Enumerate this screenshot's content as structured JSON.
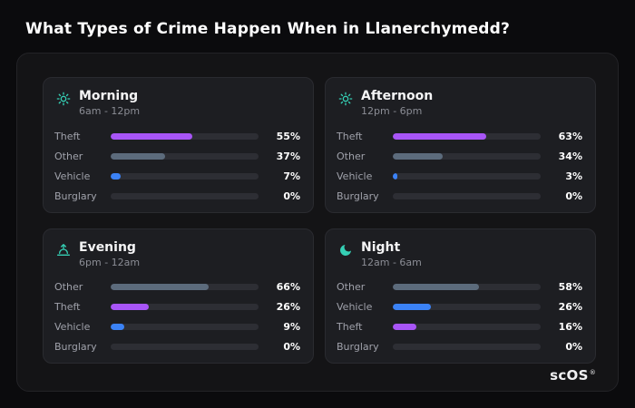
{
  "header": {
    "title": "What Types of Crime Happen When in Llanerchymedd?"
  },
  "footer": {
    "brand": "scOS",
    "registered": "®"
  },
  "colors": {
    "Theft": "#a855f7",
    "Other": "#5c6b7c",
    "Vehicle": "#3b82f6",
    "Burglary": "transparent",
    "icon_accent": "#35d0b5",
    "track": "#2d2e34",
    "panel_bg": "#141416",
    "card_bg": "#1d1e22",
    "page_bg": "#0b0b0d"
  },
  "chart_data": [
    {
      "type": "bar",
      "period": "Morning",
      "time_range": "6am - 12pm",
      "icon": "sun-icon",
      "categories": [
        "Theft",
        "Other",
        "Vehicle",
        "Burglary"
      ],
      "values": [
        55,
        37,
        7,
        0
      ],
      "value_labels": [
        "55%",
        "37%",
        "7%",
        "0%"
      ],
      "xlim": [
        0,
        100
      ]
    },
    {
      "type": "bar",
      "period": "Afternoon",
      "time_range": "12pm - 6pm",
      "icon": "sun-icon",
      "categories": [
        "Theft",
        "Other",
        "Vehicle",
        "Burglary"
      ],
      "values": [
        63,
        34,
        3,
        0
      ],
      "value_labels": [
        "63%",
        "34%",
        "3%",
        "0%"
      ],
      "xlim": [
        0,
        100
      ]
    },
    {
      "type": "bar",
      "period": "Evening",
      "time_range": "6pm - 12am",
      "icon": "sunset-icon",
      "categories": [
        "Other",
        "Theft",
        "Vehicle",
        "Burglary"
      ],
      "values": [
        66,
        26,
        9,
        0
      ],
      "value_labels": [
        "66%",
        "26%",
        "9%",
        "0%"
      ],
      "xlim": [
        0,
        100
      ]
    },
    {
      "type": "bar",
      "period": "Night",
      "time_range": "12am - 6am",
      "icon": "moon-icon",
      "categories": [
        "Other",
        "Vehicle",
        "Theft",
        "Burglary"
      ],
      "values": [
        58,
        26,
        16,
        0
      ],
      "value_labels": [
        "58%",
        "26%",
        "16%",
        "0%"
      ],
      "xlim": [
        0,
        100
      ]
    }
  ]
}
